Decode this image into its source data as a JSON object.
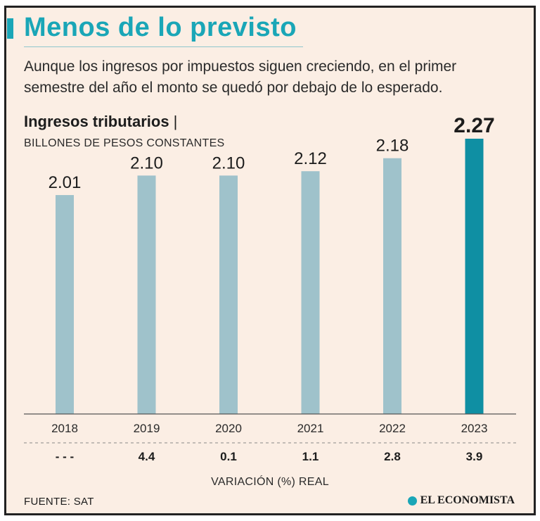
{
  "header": {
    "title": "Menos de lo previsto",
    "subtitle": "Aunque los ingresos por impuestos siguen creciendo, en el primer semestre del año el monto se quedó por debajo de lo esperado."
  },
  "chart_data": {
    "type": "bar",
    "title": "Ingresos tributarios",
    "title_separator": "|",
    "ylabel": "BILLONES DE PESOS CONSTANTES",
    "categories": [
      "2018",
      "2019",
      "2020",
      "2021",
      "2022",
      "2023"
    ],
    "values": [
      2.01,
      2.1,
      2.1,
      2.12,
      2.18,
      2.27
    ],
    "value_labels": [
      "2.01",
      "2.10",
      "2.10",
      "2.12",
      "2.18",
      "2.27"
    ],
    "highlight_index": 5,
    "ylim": [
      1.0,
      2.27
    ],
    "grid": false,
    "colors": {
      "bar": "#9fc2cb",
      "highlight": "#0f8fa3",
      "axis": "#555555"
    },
    "variation": {
      "label": "VARIACIÓN (%) REAL",
      "values": [
        "- - -",
        "4.4",
        "0.1",
        "1.1",
        "2.8",
        "3.9"
      ]
    }
  },
  "footer": {
    "source": "FUENTE: SAT",
    "brand": "EL ECONOMISTA",
    "brand_icon": "el-economista-logo-icon"
  }
}
